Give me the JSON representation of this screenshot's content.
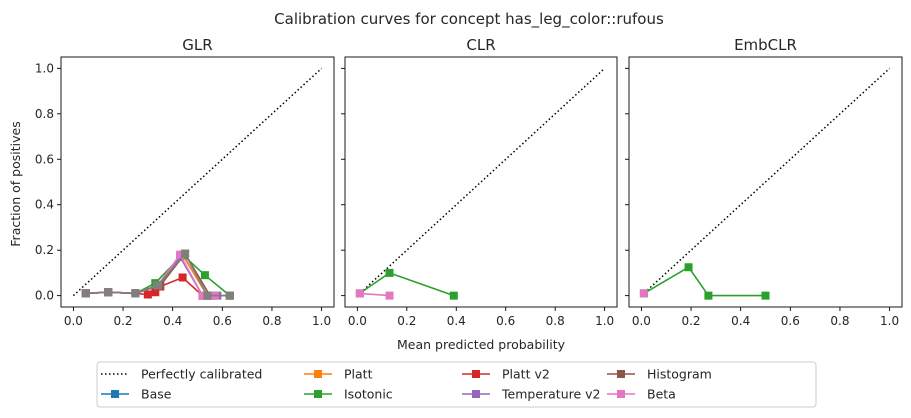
{
  "suptitle": "Calibration curves for concept has_leg_color::rufous",
  "xlabel": "Mean predicted probability",
  "ylabel": "Fraction of positives",
  "legend": {
    "placement": "bottom-center",
    "entries": [
      {
        "label": "Perfectly calibrated",
        "color": "#000000",
        "style": "dotted"
      },
      {
        "label": "Base",
        "color": "#1f77b4",
        "style": "line-square"
      },
      {
        "label": "Platt",
        "color": "#ff7f0e",
        "style": "line-square"
      },
      {
        "label": "Isotonic",
        "color": "#2ca02c",
        "style": "line-square"
      },
      {
        "label": "Platt v2",
        "color": "#d62728",
        "style": "line-square"
      },
      {
        "label": "Temperature v2",
        "color": "#9467bd",
        "style": "line-square"
      },
      {
        "label": "Histogram",
        "color": "#8c564b",
        "style": "line-square"
      },
      {
        "label": "Beta",
        "color": "#e377c2",
        "style": "line-square"
      }
    ]
  },
  "chart_data": [
    {
      "type": "line",
      "title": "GLR",
      "xlim": [
        -0.05,
        1.05
      ],
      "ylim": [
        -0.05,
        1.05
      ],
      "xticks": [
        "0.0",
        "0.2",
        "0.4",
        "0.6",
        "0.8",
        "1.0"
      ],
      "yticks": [
        "0.0",
        "0.2",
        "0.4",
        "0.6",
        "0.8",
        "1.0"
      ],
      "series": [
        {
          "name": "Perfectly calibrated",
          "color": "#000000",
          "dotted": true,
          "x": [
            0,
            1
          ],
          "y": [
            0,
            1
          ]
        },
        {
          "name": "Base",
          "color": "#1f77b4",
          "x": [
            0.05,
            0.14,
            0.25,
            0.34,
            0.44,
            0.54
          ],
          "y": [
            0.01,
            0.015,
            0.01,
            0.045,
            0.18,
            0.0
          ]
        },
        {
          "name": "Platt",
          "color": "#ff7f0e",
          "x": [
            0.05,
            0.14,
            0.25,
            0.34,
            0.44,
            0.54
          ],
          "y": [
            0.01,
            0.015,
            0.01,
            0.045,
            0.18,
            0.0
          ]
        },
        {
          "name": "Isotonic",
          "color": "#2ca02c",
          "x": [
            0.05,
            0.14,
            0.25,
            0.33,
            0.44,
            0.53,
            0.63
          ],
          "y": [
            0.01,
            0.015,
            0.01,
            0.055,
            0.18,
            0.09,
            0.0
          ]
        },
        {
          "name": "Platt v2",
          "color": "#d62728",
          "x": [
            0.05,
            0.14,
            0.25,
            0.3,
            0.33,
            0.35,
            0.44,
            0.52,
            0.56
          ],
          "y": [
            0.01,
            0.015,
            0.01,
            0.005,
            0.015,
            0.04,
            0.08,
            0.0,
            0.0
          ]
        },
        {
          "name": "Temperature v2",
          "color": "#9467bd",
          "x": [
            0.05,
            0.14,
            0.25,
            0.34,
            0.43,
            0.52,
            0.58
          ],
          "y": [
            0.01,
            0.015,
            0.01,
            0.045,
            0.17,
            0.0,
            0.0
          ]
        },
        {
          "name": "Histogram",
          "color": "#8c564b",
          "x": [
            0.05,
            0.14,
            0.25,
            0.35,
            0.45,
            0.55,
            0.63
          ],
          "y": [
            0.01,
            0.015,
            0.01,
            0.045,
            0.185,
            0.0,
            0.0
          ]
        },
        {
          "name": "Beta",
          "color": "#e377c2",
          "x": [
            0.05,
            0.14,
            0.25,
            0.34,
            0.43,
            0.52,
            0.57
          ],
          "y": [
            0.01,
            0.015,
            0.01,
            0.045,
            0.18,
            0.0,
            0.0
          ]
        },
        {
          "name": "Histogram",
          "color": "#7f7f7f",
          "x": [
            0.05,
            0.14,
            0.25,
            0.34,
            0.45,
            0.54,
            0.63
          ],
          "y": [
            0.01,
            0.015,
            0.01,
            0.045,
            0.185,
            0.0,
            0.0
          ]
        }
      ]
    },
    {
      "type": "line",
      "title": "CLR",
      "xlim": [
        -0.05,
        1.05
      ],
      "ylim": [
        -0.05,
        1.05
      ],
      "xticks": [
        "0.0",
        "0.2",
        "0.4",
        "0.6",
        "0.8",
        "1.0"
      ],
      "yticks": [],
      "series": [
        {
          "name": "Perfectly calibrated",
          "color": "#000000",
          "dotted": true,
          "x": [
            0,
            1
          ],
          "y": [
            0,
            1
          ]
        },
        {
          "name": "Isotonic",
          "color": "#2ca02c",
          "x": [
            0.01,
            0.13,
            0.39
          ],
          "y": [
            0.01,
            0.1,
            0.0
          ]
        },
        {
          "name": "Beta",
          "color": "#e377c2",
          "x": [
            0.01,
            0.13
          ],
          "y": [
            0.01,
            0.0
          ]
        }
      ]
    },
    {
      "type": "line",
      "title": "EmbCLR",
      "xlim": [
        -0.05,
        1.05
      ],
      "ylim": [
        -0.05,
        1.05
      ],
      "xticks": [
        "0.0",
        "0.2",
        "0.4",
        "0.6",
        "0.8",
        "1.0"
      ],
      "yticks": [],
      "series": [
        {
          "name": "Perfectly calibrated",
          "color": "#000000",
          "dotted": true,
          "x": [
            0,
            1
          ],
          "y": [
            0,
            1
          ]
        },
        {
          "name": "Isotonic",
          "color": "#2ca02c",
          "x": [
            0.01,
            0.19,
            0.27,
            0.5
          ],
          "y": [
            0.01,
            0.125,
            0.0,
            0.0
          ]
        },
        {
          "name": "Beta",
          "color": "#e377c2",
          "x": [
            0.01
          ],
          "y": [
            0.01
          ]
        }
      ]
    }
  ]
}
